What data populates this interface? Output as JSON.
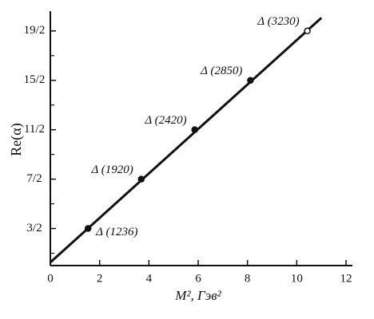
{
  "chart_data": {
    "type": "scatter",
    "x_label": "M², Гэв²",
    "y_label": "Re(α)",
    "x": [
      1.53,
      3.69,
      5.86,
      8.12,
      10.43
    ],
    "values": [
      1.5,
      3.5,
      5.5,
      7.5,
      9.5
    ],
    "labels": [
      "Δ (1236)",
      "Δ (1920)",
      "Δ (2420)",
      "Δ (2850)",
      "Δ (3230)"
    ],
    "fit_line": {
      "x": [
        0,
        11
      ],
      "values": [
        0.13,
        10.03
      ]
    },
    "color": "#111111",
    "xlim": [
      0,
      12
    ],
    "xticks": [
      0,
      2,
      4,
      6,
      8,
      10,
      12
    ],
    "ylim": [
      0,
      10.3
    ],
    "yticks": [
      {
        "value": 1.5,
        "label": "3/2"
      },
      {
        "value": 3.5,
        "label": "7/2"
      },
      {
        "value": 5.5,
        "label": "11/2"
      },
      {
        "value": 7.5,
        "label": "15/2"
      },
      {
        "value": 9.5,
        "label": "19/2"
      }
    ],
    "yminor_ticks": [
      0.5,
      2.5,
      4.5,
      6.5,
      8.5
    ]
  }
}
